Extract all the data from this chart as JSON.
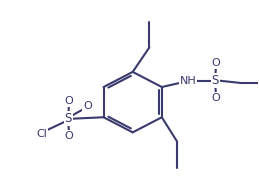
{
  "bg_color": "#ffffff",
  "bond_color": "#3a3a6e",
  "bond_width": 1.5,
  "figsize": [
    2.59,
    1.87
  ],
  "dpi": 100,
  "xlim": [
    -3.8,
    4.2
  ],
  "ylim": [
    -3.0,
    3.4
  ]
}
